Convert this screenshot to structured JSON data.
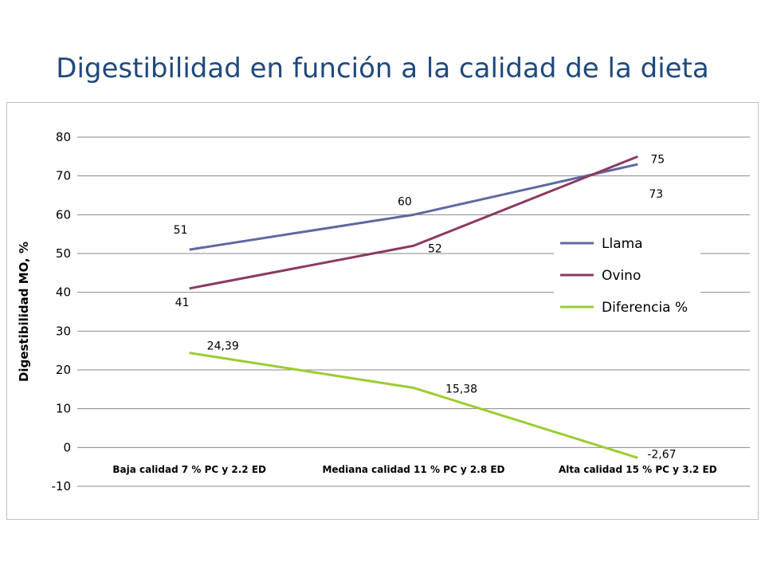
{
  "title": "Digestibilidad en función a la calidad de la dieta",
  "chart_data": {
    "type": "line",
    "title": "",
    "xlabel": "",
    "ylabel": "Digestibilidad MO, %",
    "ylim": [
      -10,
      80
    ],
    "yticks": [
      80,
      70,
      60,
      50,
      40,
      30,
      20,
      10,
      0,
      -10
    ],
    "categories": [
      "Baja calidad 7 % PC y 2.2 ED",
      "Mediana calidad 11 % PC y 2.8 ED",
      "Alta calidad 15 % PC y 3.2 ED"
    ],
    "grid": true,
    "legend": "right",
    "series": [
      {
        "name": "Llama",
        "color": "#6068a0",
        "values": [
          51,
          60,
          73
        ],
        "labels": [
          "51",
          "60",
          "73"
        ]
      },
      {
        "name": "Ovino",
        "color": "#8b3a62",
        "values": [
          41,
          52,
          75
        ],
        "labels": [
          "41",
          "52",
          "75"
        ]
      },
      {
        "name": "Diferencia %",
        "color": "#9acd32",
        "values": [
          24.39,
          15.38,
          -2.67
        ],
        "labels": [
          "24,39",
          "15,38",
          "-2,67"
        ]
      }
    ]
  }
}
